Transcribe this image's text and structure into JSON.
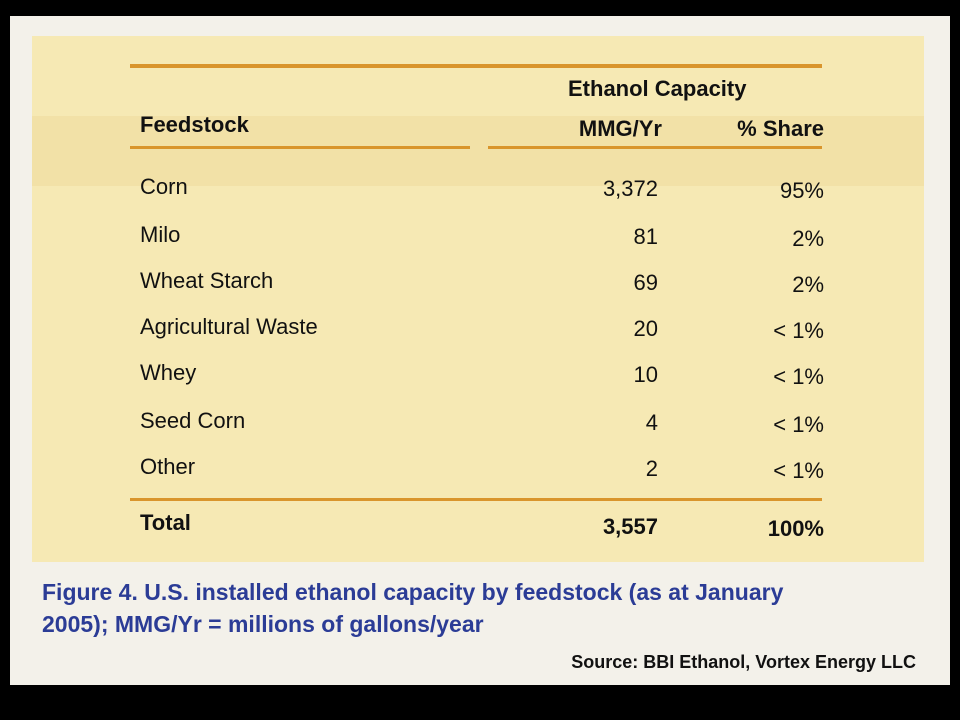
{
  "table": {
    "group_header": "Ethanol Capacity",
    "columns": [
      "Feedstock",
      "MMG/Yr",
      "% Share"
    ],
    "rows": [
      {
        "feedstock": "Corn",
        "mmg": "3,372",
        "share": "95%"
      },
      {
        "feedstock": "Milo",
        "mmg": "81",
        "share": "2%"
      },
      {
        "feedstock": "Wheat Starch",
        "mmg": "69",
        "share": "2%"
      },
      {
        "feedstock": "Agricultural Waste",
        "mmg": "20",
        "share": "< 1%"
      },
      {
        "feedstock": "Whey",
        "mmg": "10",
        "share": "< 1%"
      },
      {
        "feedstock": "Seed Corn",
        "mmg": "4",
        "share": "< 1%"
      },
      {
        "feedstock": "Other",
        "mmg": "2",
        "share": "< 1%"
      }
    ],
    "total": {
      "feedstock": "Total",
      "mmg": "3,557",
      "share": "100%"
    }
  },
  "caption": {
    "line1": "Figure 4. U.S. installed ethanol capacity by feedstock (as at January",
    "line2": "2005); MMG/Yr = millions of gallons/year"
  },
  "source": "Source: BBI Ethanol, Vortex Energy LLC",
  "colors": {
    "panel": "#f6e9b4",
    "rule": "#d9952c",
    "caption": "#2b3c96"
  }
}
